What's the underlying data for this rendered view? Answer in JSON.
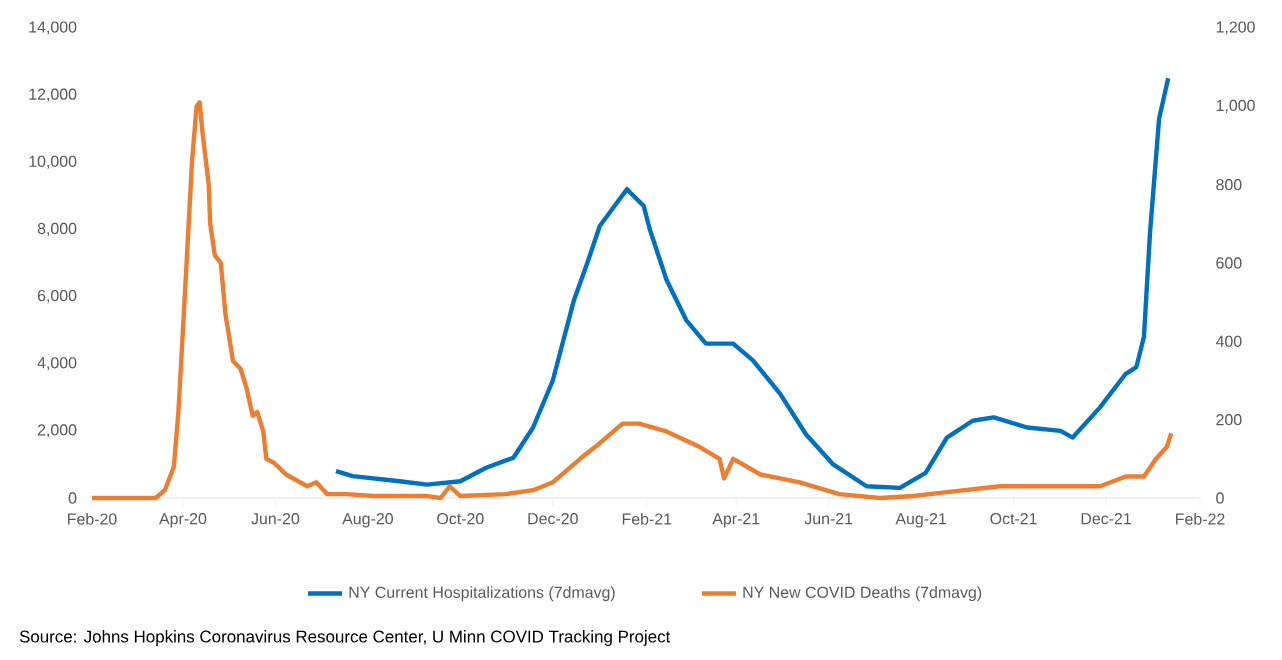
{
  "chart_data": {
    "type": "line",
    "xlim": [
      "2020-02-01",
      "2022-02-01"
    ],
    "xticks": [
      {
        "value": "2020-02-01",
        "label": "Feb-20"
      },
      {
        "value": "2020-04-01",
        "label": "Apr-20"
      },
      {
        "value": "2020-06-01",
        "label": "Jun-20"
      },
      {
        "value": "2020-08-01",
        "label": "Aug-20"
      },
      {
        "value": "2020-10-01",
        "label": "Oct-20"
      },
      {
        "value": "2020-12-01",
        "label": "Dec-20"
      },
      {
        "value": "2021-02-01",
        "label": "Feb-21"
      },
      {
        "value": "2021-04-01",
        "label": "Apr-21"
      },
      {
        "value": "2021-06-01",
        "label": "Jun-21"
      },
      {
        "value": "2021-08-01",
        "label": "Aug-21"
      },
      {
        "value": "2021-10-01",
        "label": "Oct-21"
      },
      {
        "value": "2021-12-01",
        "label": "Dec-21"
      },
      {
        "value": "2022-02-01",
        "label": "Feb-22"
      }
    ],
    "ylim": [
      0,
      14000
    ],
    "yticks": [
      0,
      {
        "value": 2000,
        "label": "2,000"
      },
      {
        "value": 4000,
        "label": "4,000"
      },
      {
        "value": 6000,
        "label": "6,000"
      },
      {
        "value": 8000,
        "label": "8,000"
      },
      {
        "value": 10000,
        "label": "10,000"
      },
      {
        "value": 12000,
        "label": "12,000"
      },
      {
        "value": 14000,
        "label": "14,000"
      }
    ],
    "y2lim": [
      0,
      1200
    ],
    "y2ticks": [
      0,
      200,
      400,
      600,
      800,
      {
        "value": 1000,
        "label": "1,000"
      },
      {
        "value": 1200,
        "label": "1,200"
      }
    ],
    "legend": "bottom",
    "series": [
      {
        "name": "NY Current Hospitalizations (7dmavg)",
        "color": "#0070c0",
        "axis": "y",
        "x": [
          "2020-07-11",
          "2020-07-22",
          "2020-08-22",
          "2020-09-09",
          "2020-10-01",
          "2020-10-18",
          "2020-11-05",
          "2020-11-18",
          "2020-12-01",
          "2020-12-15",
          "2020-12-23",
          "2021-01-01",
          "2021-01-14",
          "2021-01-19",
          "2021-01-21",
          "2021-01-30",
          "2021-02-03",
          "2021-02-14",
          "2021-02-27",
          "2021-03-12",
          "2021-03-30",
          "2021-04-12",
          "2021-04-30",
          "2021-05-17",
          "2021-06-04",
          "2021-06-26",
          "2021-07-18",
          "2021-08-04",
          "2021-08-18",
          "2021-09-04",
          "2021-09-18",
          "2021-10-10",
          "2021-11-01",
          "2021-11-09",
          "2021-11-27",
          "2021-12-14",
          "2021-12-21",
          "2021-12-26",
          "2021-12-30",
          "2022-01-05",
          "2022-01-11"
        ],
        "values": [
          800,
          650,
          500,
          400,
          500,
          900,
          1200,
          2100,
          3500,
          5900,
          6900,
          8100,
          8900,
          9200,
          9100,
          8700,
          8000,
          6500,
          5300,
          4600,
          4600,
          4100,
          3100,
          1900,
          1000,
          350,
          300,
          750,
          1800,
          2300,
          2400,
          2100,
          2000,
          1800,
          2700,
          3700,
          3900,
          4800,
          7900,
          11300,
          12500
        ]
      },
      {
        "name": "NY New COVID Deaths (7dmavg)",
        "color": "#ed7d31",
        "axis": "y2",
        "x": [
          "2020-02-01",
          "2020-03-14",
          "2020-03-20",
          "2020-03-26",
          "2020-03-29",
          "2020-04-02",
          "2020-04-07",
          "2020-04-10",
          "2020-04-12",
          "2020-04-14",
          "2020-04-18",
          "2020-04-19",
          "2020-04-22",
          "2020-04-26",
          "2020-04-29",
          "2020-05-04",
          "2020-05-09",
          "2020-05-13",
          "2020-05-17",
          "2020-05-20",
          "2020-05-24",
          "2020-05-26",
          "2020-05-31",
          "2020-06-08",
          "2020-06-22",
          "2020-06-28",
          "2020-07-05",
          "2020-07-18",
          "2020-08-05",
          "2020-09-09",
          "2020-09-18",
          "2020-09-24",
          "2020-10-01",
          "2020-10-31",
          "2020-11-18",
          "2020-12-01",
          "2020-12-19",
          "2021-01-01",
          "2021-01-16",
          "2021-01-27",
          "2021-02-14",
          "2021-03-08",
          "2021-03-21",
          "2021-03-24",
          "2021-03-30",
          "2021-04-17",
          "2021-05-13",
          "2021-06-08",
          "2021-07-05",
          "2021-07-27",
          "2021-08-18",
          "2021-09-22",
          "2021-10-27",
          "2021-11-27",
          "2021-12-14",
          "2021-12-26",
          "2022-01-03",
          "2022-01-10",
          "2022-01-13"
        ],
        "values": [
          0,
          0,
          20,
          80,
          220,
          500,
          860,
          1000,
          1010,
          930,
          800,
          700,
          620,
          600,
          470,
          350,
          330,
          280,
          210,
          220,
          170,
          100,
          90,
          60,
          30,
          40,
          10,
          10,
          5,
          5,
          0,
          30,
          5,
          10,
          20,
          40,
          100,
          140,
          190,
          190,
          170,
          130,
          100,
          50,
          100,
          60,
          40,
          10,
          0,
          5,
          15,
          30,
          30,
          30,
          55,
          55,
          100,
          130,
          165
        ]
      }
    ],
    "annotations": [
      "Source: Johns Hopkins Coronavirus Resource Center, U Minn COVID Tracking Project"
    ]
  }
}
